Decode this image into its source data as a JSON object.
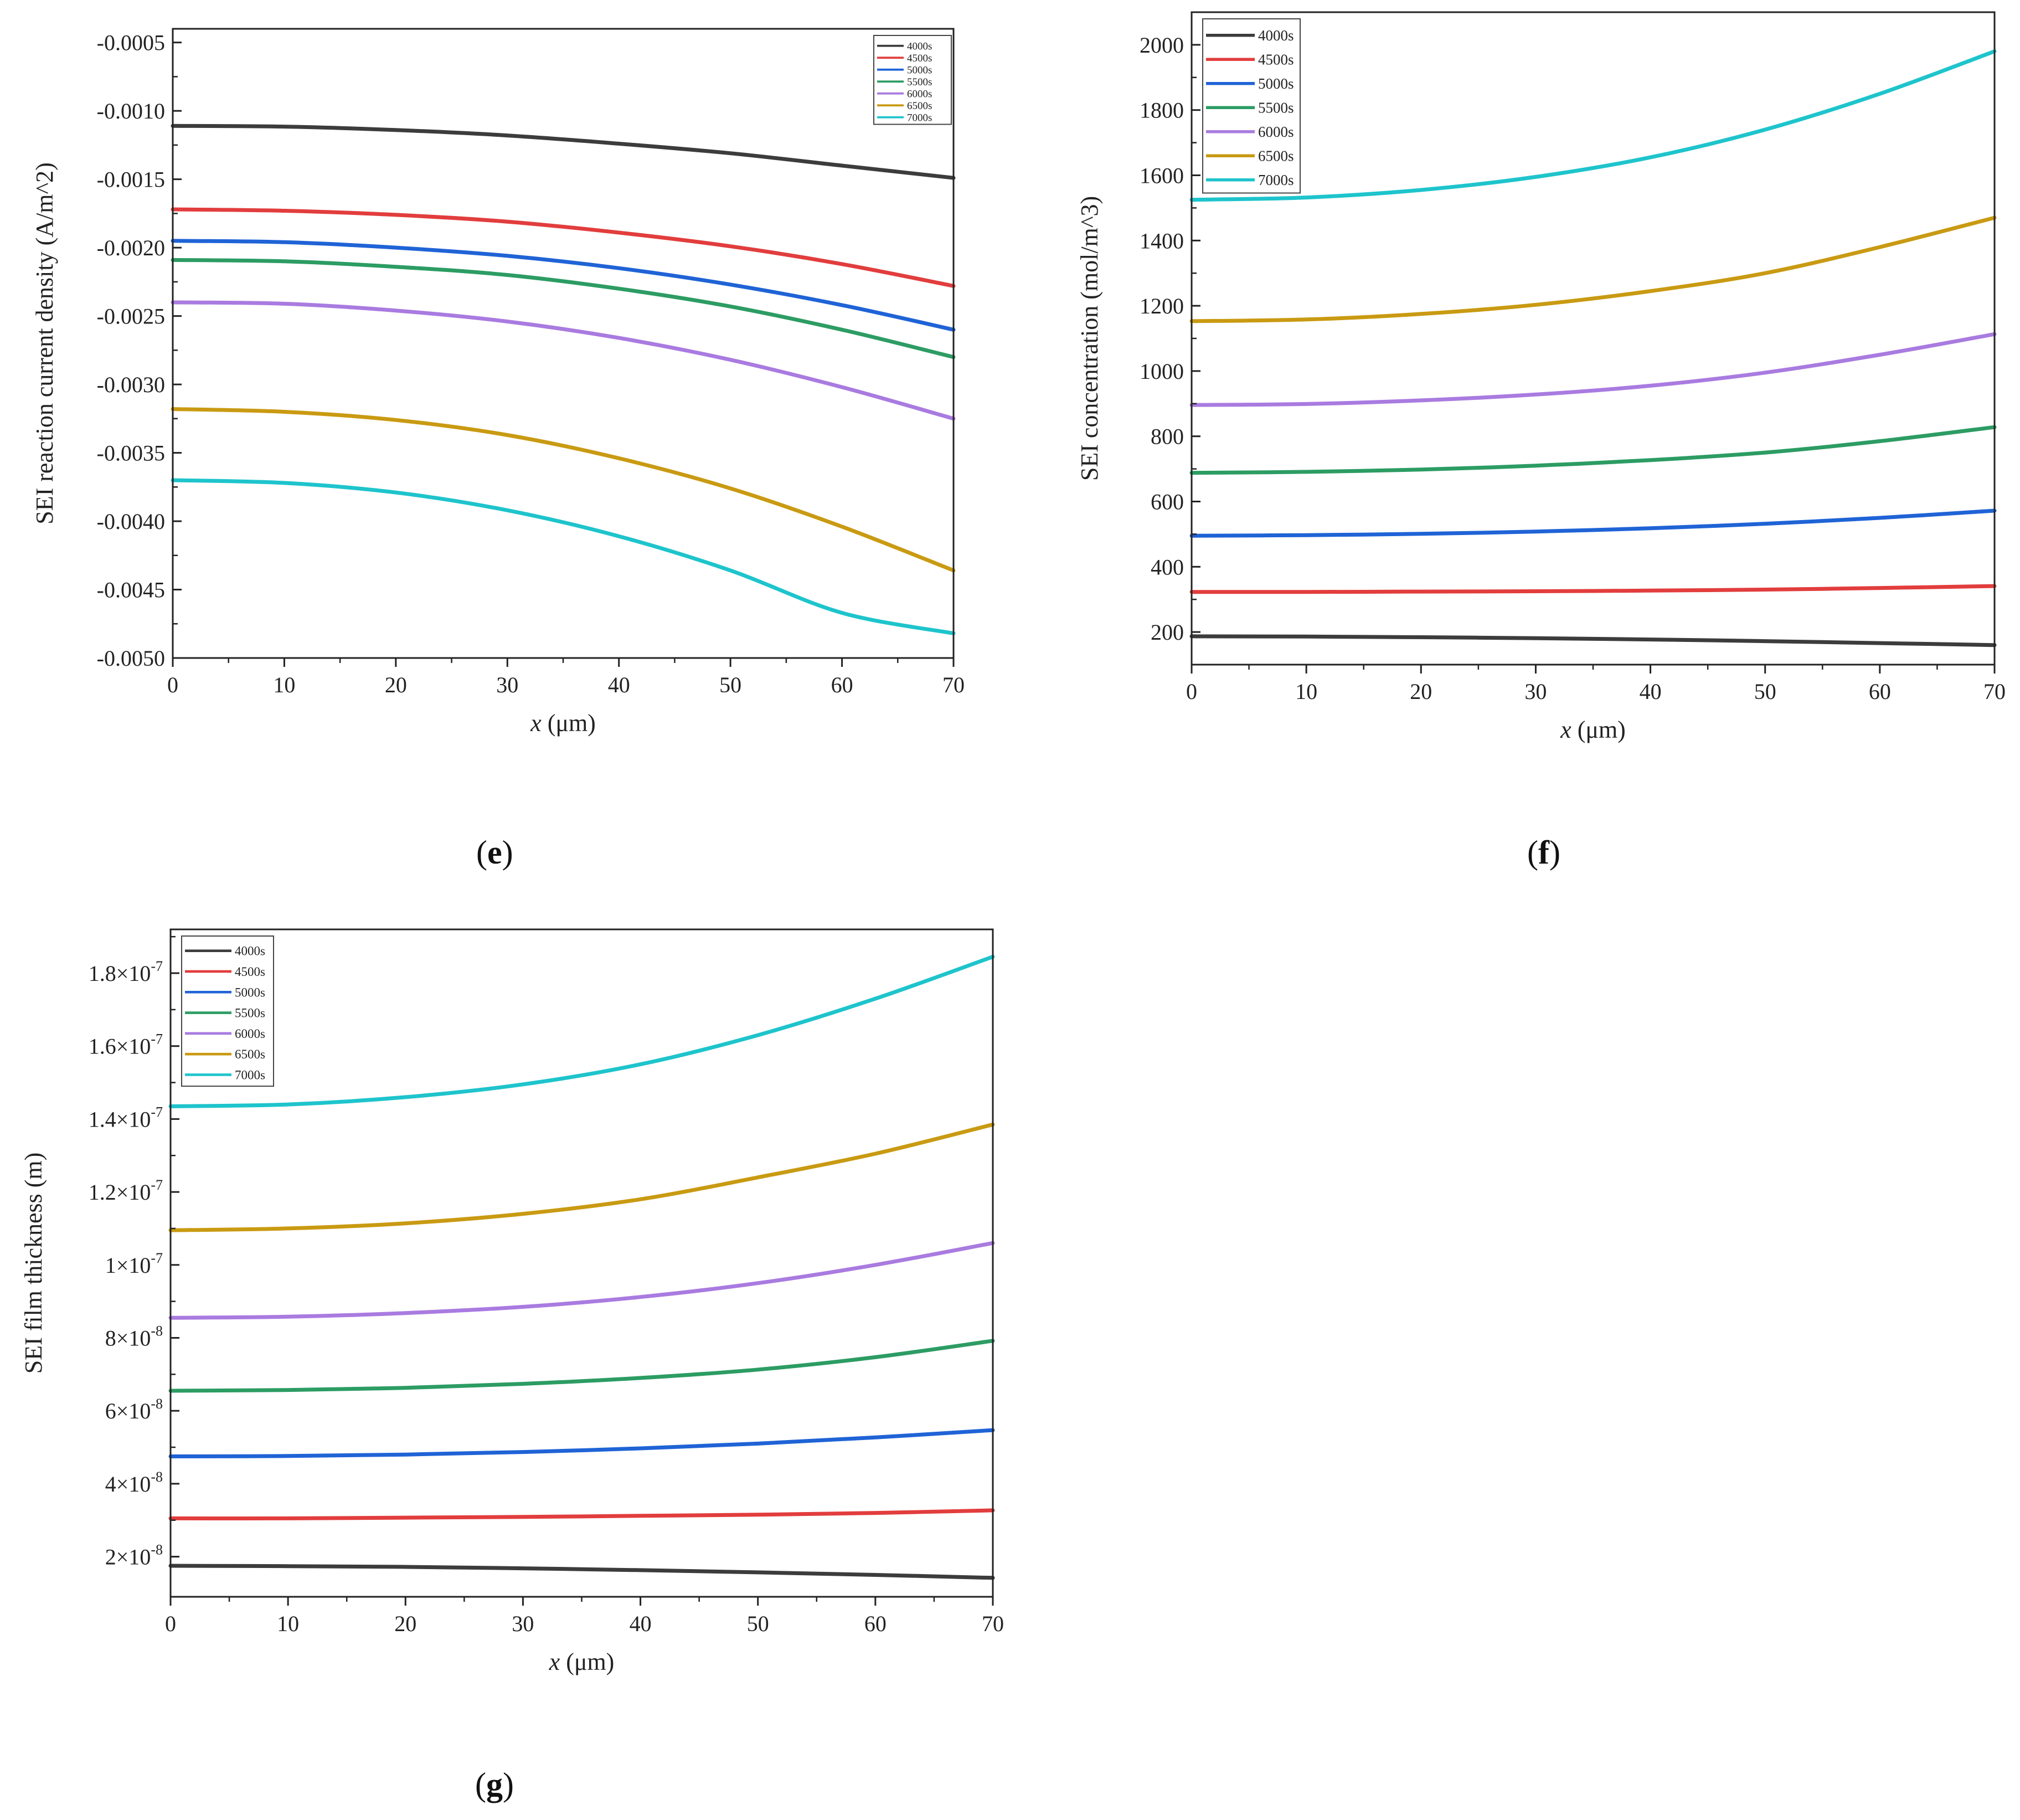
{
  "panel_labels": [
    "e",
    "f",
    "g"
  ],
  "legend_series": [
    "4000s",
    "4500s",
    "5000s",
    "5500s",
    "6000s",
    "6500s",
    "7000s"
  ],
  "series_colors": [
    "#3c3c3c",
    "#e23d3d",
    "#1f63d6",
    "#2c9c63",
    "#a97be0",
    "#c99a12",
    "#1ec4cc"
  ],
  "chart_data": [
    {
      "panel": "e",
      "type": "line",
      "title": "",
      "xlabel": "x (μm)",
      "ylabel": "SEI reaction current density (A/m^2)",
      "xlim": [
        0,
        70
      ],
      "ylim": [
        -0.005,
        -0.0004
      ],
      "x_ticks": [
        0,
        10,
        20,
        30,
        40,
        50,
        60,
        70
      ],
      "y_ticks": [
        -0.0005,
        -0.001,
        -0.0015,
        -0.002,
        -0.0025,
        -0.003,
        -0.0035,
        -0.004,
        -0.0045,
        -0.005
      ],
      "y_tick_labels": [
        "-0.0005",
        "-0.0010",
        "-0.0015",
        "-0.0020",
        "-0.0025",
        "-0.0030",
        "-0.0035",
        "-0.0040",
        "-0.0045",
        "-0.0050"
      ],
      "legend_position": "top-right",
      "x": [
        0,
        10,
        20,
        30,
        40,
        50,
        60,
        70
      ],
      "series": [
        {
          "name": "4000s",
          "values": [
            -0.00111,
            -0.001115,
            -0.00114,
            -0.00118,
            -0.00124,
            -0.00131,
            -0.0014,
            -0.00149
          ]
        },
        {
          "name": "4500s",
          "values": [
            -0.00172,
            -0.00173,
            -0.00176,
            -0.00181,
            -0.00189,
            -0.00199,
            -0.00212,
            -0.00228
          ]
        },
        {
          "name": "5000s",
          "values": [
            -0.00195,
            -0.00196,
            -0.002,
            -0.00206,
            -0.00215,
            -0.00227,
            -0.00242,
            -0.0026
          ]
        },
        {
          "name": "5500s",
          "values": [
            -0.00209,
            -0.0021,
            -0.00214,
            -0.0022,
            -0.0023,
            -0.00243,
            -0.0026,
            -0.0028
          ]
        },
        {
          "name": "6000s",
          "values": [
            -0.0024,
            -0.00241,
            -0.00246,
            -0.00254,
            -0.00266,
            -0.00282,
            -0.00302,
            -0.00325
          ]
        },
        {
          "name": "6500s",
          "values": [
            -0.00318,
            -0.0032,
            -0.00326,
            -0.00337,
            -0.00354,
            -0.00376,
            -0.00404,
            -0.00436
          ]
        },
        {
          "name": "7000s",
          "values": [
            -0.0037,
            -0.00372,
            -0.00379,
            -0.00392,
            -0.00411,
            -0.00436,
            -0.00467,
            -0.00482
          ]
        }
      ]
    },
    {
      "panel": "f",
      "type": "line",
      "title": "",
      "xlabel": "x (μm)",
      "ylabel": "SEI concentration (mol/m^3)",
      "xlim": [
        0,
        70
      ],
      "ylim": [
        100,
        2100
      ],
      "x_ticks": [
        0,
        10,
        20,
        30,
        40,
        50,
        60,
        70
      ],
      "y_ticks": [
        200,
        400,
        600,
        800,
        1000,
        1200,
        1400,
        1600,
        1800,
        2000
      ],
      "y_tick_labels": [
        "200",
        "400",
        "600",
        "800",
        "1000",
        "1200",
        "1400",
        "1600",
        "1800",
        "2000"
      ],
      "legend_position": "top-left",
      "x": [
        0,
        10,
        20,
        30,
        40,
        50,
        60,
        70
      ],
      "series": [
        {
          "name": "4000s",
          "values": [
            187,
            186,
            184,
            181,
            177,
            172,
            166,
            160
          ]
        },
        {
          "name": "4500s",
          "values": [
            323,
            323,
            324,
            325,
            327,
            330,
            335,
            341
          ]
        },
        {
          "name": "5000s",
          "values": [
            495,
            497,
            501,
            508,
            518,
            532,
            550,
            572
          ]
        },
        {
          "name": "5500s",
          "values": [
            688,
            691,
            698,
            710,
            727,
            750,
            785,
            828
          ]
        },
        {
          "name": "6000s",
          "values": [
            896,
            899,
            910,
            928,
            955,
            995,
            1050,
            1113
          ]
        },
        {
          "name": "6500s",
          "values": [
            1153,
            1158,
            1175,
            1203,
            1245,
            1300,
            1380,
            1470
          ]
        },
        {
          "name": "7000s",
          "values": [
            1525,
            1532,
            1555,
            1595,
            1655,
            1740,
            1850,
            1980
          ]
        }
      ]
    },
    {
      "panel": "g",
      "type": "line",
      "title": "",
      "xlabel": "x (μm)",
      "ylabel": "SEI film thickness (m)",
      "xlim": [
        0,
        70
      ],
      "ylim": [
        9e-09,
        1.92e-07
      ],
      "x_ticks": [
        0,
        10,
        20,
        30,
        40,
        50,
        60,
        70
      ],
      "y_ticks": [
        2e-08,
        4e-08,
        6e-08,
        8e-08,
        1e-07,
        1.2e-07,
        1.4e-07,
        1.6e-07,
        1.8e-07
      ],
      "y_tick_labels": [
        {
          "mantissa": "2",
          "exponent": "-8"
        },
        {
          "mantissa": "4",
          "exponent": "-8"
        },
        {
          "mantissa": "6",
          "exponent": "-8"
        },
        {
          "mantissa": "8",
          "exponent": "-8"
        },
        {
          "mantissa": "1",
          "exponent": "-7"
        },
        {
          "mantissa": "1.2",
          "exponent": "-7"
        },
        {
          "mantissa": "1.4",
          "exponent": "-7"
        },
        {
          "mantissa": "1.6",
          "exponent": "-7"
        },
        {
          "mantissa": "1.8",
          "exponent": "-7"
        }
      ],
      "legend_position": "top-left",
      "x": [
        0,
        10,
        20,
        30,
        40,
        50,
        60,
        70
      ],
      "series": [
        {
          "name": "4000s",
          "values": [
            1.75e-08,
            1.74e-08,
            1.72e-08,
            1.68e-08,
            1.63e-08,
            1.57e-08,
            1.5e-08,
            1.42e-08
          ]
        },
        {
          "name": "4500s",
          "values": [
            3.05e-08,
            3.05e-08,
            3.07e-08,
            3.09e-08,
            3.12e-08,
            3.15e-08,
            3.2e-08,
            3.27e-08
          ]
        },
        {
          "name": "5000s",
          "values": [
            4.75e-08,
            4.76e-08,
            4.8e-08,
            4.87e-08,
            4.97e-08,
            5.1e-08,
            5.27e-08,
            5.47e-08
          ]
        },
        {
          "name": "5500s",
          "values": [
            6.55e-08,
            6.57e-08,
            6.63e-08,
            6.74e-08,
            6.9e-08,
            7.13e-08,
            7.47e-08,
            7.92e-08
          ]
        },
        {
          "name": "6000s",
          "values": [
            8.55e-08,
            8.58e-08,
            8.68e-08,
            8.85e-08,
            9.12e-08,
            9.5e-08,
            1e-07,
            1.06e-07
          ]
        },
        {
          "name": "6500s",
          "values": [
            1.095e-07,
            1.1e-07,
            1.114e-07,
            1.14e-07,
            1.18e-07,
            1.24e-07,
            1.305e-07,
            1.385e-07
          ]
        },
        {
          "name": "7000s",
          "values": [
            1.435e-07,
            1.44e-07,
            1.46e-07,
            1.495e-07,
            1.55e-07,
            1.63e-07,
            1.73e-07,
            1.845e-07
          ]
        }
      ]
    }
  ]
}
